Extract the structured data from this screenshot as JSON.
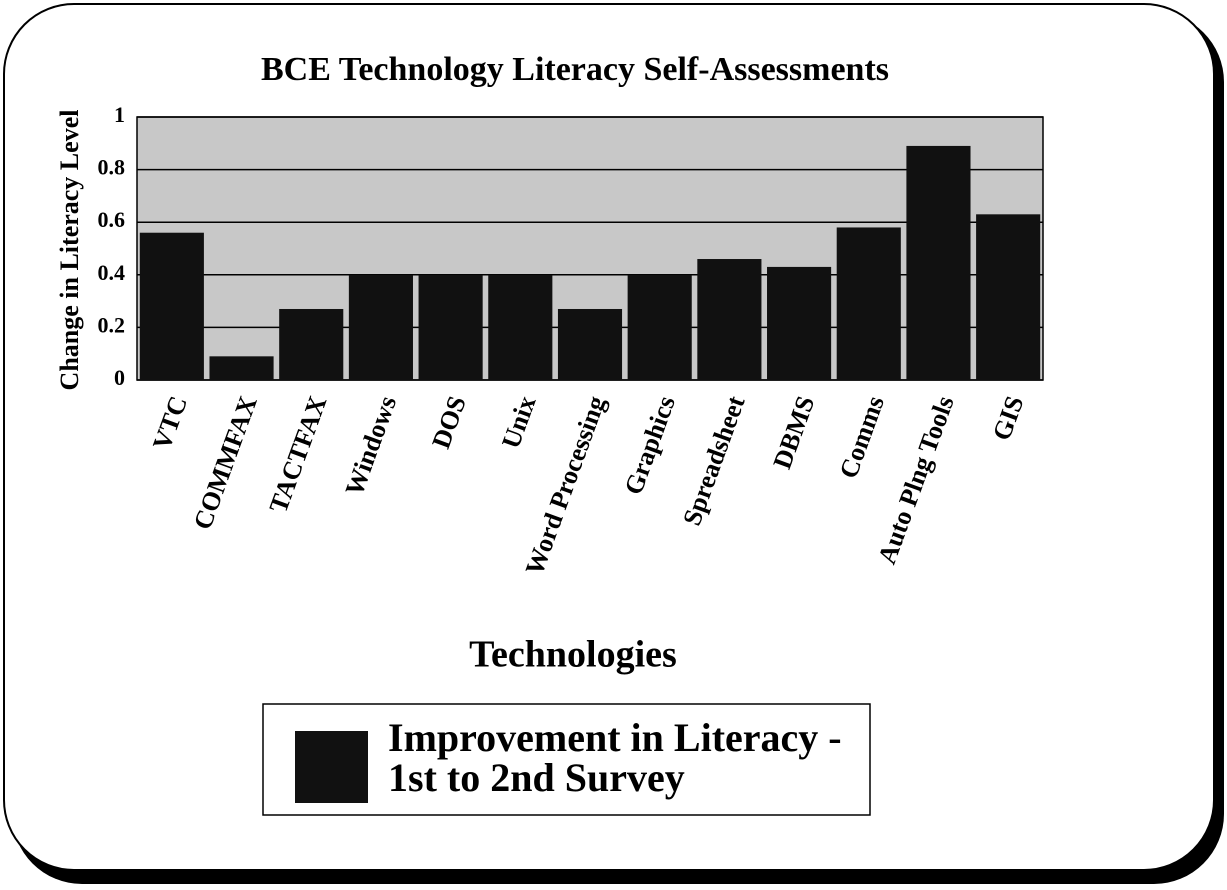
{
  "chart_data": {
    "type": "bar",
    "title": "BCE Technology Literacy Self-Assessments",
    "x_label": "Technologies",
    "y_label": "Change in Literacy Level",
    "categories": [
      "VTC",
      "COMMFAX",
      "TACTFAX",
      "Windows",
      "DOS",
      "Unix",
      "Word Processing",
      "Graphics",
      "Spreadsheet",
      "DBMS",
      "Comms",
      "Auto Plng Tools",
      "GIS"
    ],
    "series": [
      {
        "name": "Improvement in Literacy - 1st to 2nd Survey",
        "color": "#111111",
        "values": [
          0.56,
          0.09,
          0.27,
          0.4,
          0.4,
          0.4,
          0.27,
          0.4,
          0.46,
          0.43,
          0.58,
          0.89,
          0.63
        ]
      }
    ],
    "ylim": [
      0,
      1
    ],
    "yticks": [
      0,
      0.2,
      0.4,
      0.6,
      0.8,
      1
    ],
    "grid": true
  }
}
